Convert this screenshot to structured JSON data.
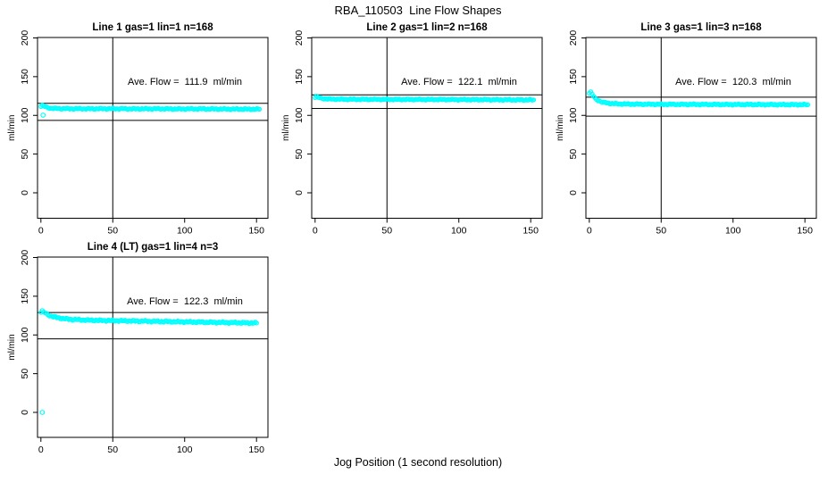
{
  "figure": {
    "title": "RBA_110503  Line Flow Shapes",
    "xlabel": "Jog Position (1 second resolution)",
    "background_color": "#ffffff"
  },
  "chart_data": {
    "type": "scatter",
    "marker": "open-circle",
    "point_color": "#00ffff",
    "axis_color": "#000000",
    "ylabel": "ml/min",
    "x_ticks": [
      0,
      50,
      100,
      150
    ],
    "y_ticks": [
      0,
      50,
      100,
      150,
      200
    ],
    "xlim": [
      0,
      150
    ],
    "ylim": [
      0,
      200
    ],
    "vline_x": 50,
    "grid": "off",
    "legend": "none",
    "panels": [
      {
        "title": "Line 1 gas=1 lin=1 n=168",
        "ave_flow": 111.9,
        "ave_flow_label": "Ave. Flow =  111.9  ml/min",
        "n": 168,
        "hline_upper": 115.5,
        "hline_lower": 93.5,
        "jitter": 0.85,
        "backbone": [
          [
            0,
            111.5
          ],
          [
            1,
            112.6
          ],
          [
            2,
            112.1
          ],
          [
            4,
            110.4
          ],
          [
            7,
            109.2
          ],
          [
            12,
            108.8
          ],
          [
            20,
            108.6
          ],
          [
            35,
            108.5
          ],
          [
            50,
            108.6
          ],
          [
            65,
            108.4
          ],
          [
            80,
            108.5
          ],
          [
            95,
            108.3
          ],
          [
            110,
            108.4
          ],
          [
            125,
            108.2
          ],
          [
            140,
            108.1
          ],
          [
            152,
            108.0
          ]
        ],
        "outliers": [
          [
            1.5,
            100.3
          ]
        ]
      },
      {
        "title": "Line 2 gas=1 lin=2 n=168",
        "ave_flow": 122.1,
        "ave_flow_label": "Ave. Flow =  122.1  ml/min",
        "n": 168,
        "hline_upper": 126.5,
        "hline_lower": 109.0,
        "jitter": 0.85,
        "backbone": [
          [
            0,
            123.0
          ],
          [
            1,
            124.2
          ],
          [
            2,
            123.2
          ],
          [
            4,
            122.2
          ],
          [
            7,
            121.5
          ],
          [
            12,
            121.0
          ],
          [
            20,
            120.8
          ],
          [
            35,
            120.7
          ],
          [
            50,
            120.6
          ],
          [
            70,
            120.5
          ],
          [
            90,
            120.4
          ],
          [
            110,
            120.3
          ],
          [
            130,
            120.1
          ],
          [
            152,
            120.0
          ]
        ],
        "outliers": []
      },
      {
        "title": "Line 3 gas=1 lin=3 n=168",
        "ave_flow": 120.3,
        "ave_flow_label": "Ave. Flow =  120.3  ml/min",
        "n": 168,
        "hline_upper": 123.5,
        "hline_lower": 99.0,
        "jitter": 0.85,
        "backbone": [
          [
            0,
            128.5
          ],
          [
            1,
            129.8
          ],
          [
            2,
            127.5
          ],
          [
            3,
            124.5
          ],
          [
            4,
            122.0
          ],
          [
            6,
            119.5
          ],
          [
            8,
            117.8
          ],
          [
            11,
            116.3
          ],
          [
            15,
            115.4
          ],
          [
            20,
            114.9
          ],
          [
            27,
            114.6
          ],
          [
            35,
            114.4
          ],
          [
            50,
            114.3
          ],
          [
            70,
            114.2
          ],
          [
            90,
            114.1
          ],
          [
            110,
            114.0
          ],
          [
            130,
            113.9
          ],
          [
            152,
            113.8
          ]
        ],
        "outliers": []
      },
      {
        "title": "Line 4 (LT) gas=1 lin=4 n=3",
        "ave_flow": 122.3,
        "ave_flow_label": "Ave. Flow =  122.3  ml/min",
        "n": 3,
        "hline_upper": 129.0,
        "hline_lower": 95.0,
        "jitter": 1.1,
        "backbone": [
          [
            0,
            129.0
          ],
          [
            1,
            130.6
          ],
          [
            2,
            129.6
          ],
          [
            4,
            127.0
          ],
          [
            7,
            124.5
          ],
          [
            11,
            122.5
          ],
          [
            16,
            121.0
          ],
          [
            22,
            120.0
          ],
          [
            30,
            119.3
          ],
          [
            40,
            118.8
          ],
          [
            55,
            118.3
          ],
          [
            70,
            117.8
          ],
          [
            90,
            117.2
          ],
          [
            110,
            116.6
          ],
          [
            130,
            116.0
          ],
          [
            150,
            115.4
          ]
        ],
        "outliers": [
          [
            1,
            0
          ]
        ]
      }
    ]
  }
}
